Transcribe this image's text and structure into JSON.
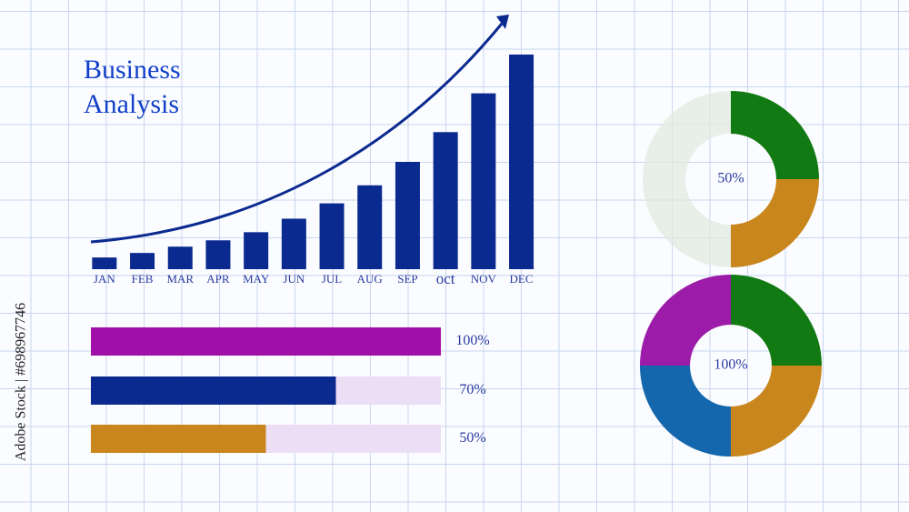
{
  "watermark": "Adobe Stock | #698967746",
  "chart_data": [
    {
      "type": "bar",
      "title": "Business Analysis",
      "categories": [
        "JAN",
        "FEB",
        "MAR",
        "APR",
        "MAY",
        "JUN",
        "JUL",
        "AUG",
        "SEP",
        "oct",
        "NOV",
        "DEC"
      ],
      "values": [
        13,
        18,
        25,
        32,
        41,
        56,
        73,
        93,
        119,
        152,
        195,
        238
      ],
      "color": "#0b2a8f",
      "ylim": [
        0,
        240
      ]
    },
    {
      "type": "progress",
      "values": [
        100,
        70,
        50
      ],
      "value_labels": [
        "100%",
        "70%",
        "50%"
      ],
      "colors": [
        "#a00fa8",
        "#0b2a8f",
        "#c8861c"
      ],
      "xlim": [
        0,
        100
      ]
    },
    {
      "type": "donut",
      "value": 50,
      "value_label": "50%",
      "values": [
        25,
        25
      ],
      "colors": [
        "#127a12",
        "#c8861c"
      ]
    },
    {
      "type": "donut",
      "value": 100,
      "value_label": "100%",
      "values": [
        25,
        25,
        25,
        25
      ],
      "colors": [
        "#127a12",
        "#c8861c",
        "#1467ad",
        "#9c1ba8"
      ]
    }
  ]
}
